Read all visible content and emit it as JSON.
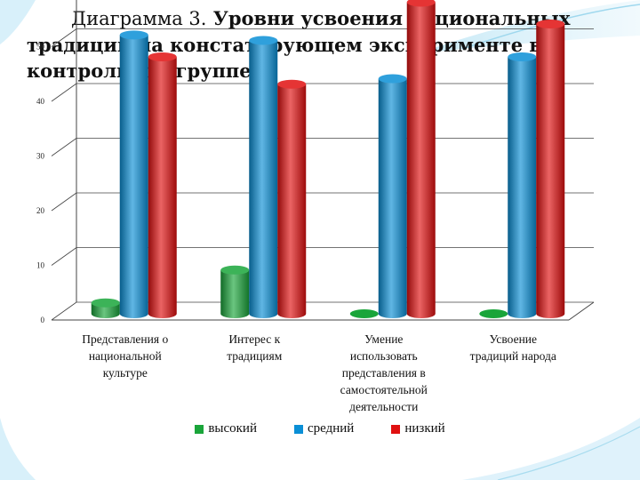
{
  "slide": {
    "title_prefix": "Диаграмма 3.",
    "title_main": "Уровни усвоения национальных традиций на констатирующем эксперименте в контрольной группе."
  },
  "chart_data": {
    "type": "bar",
    "title": "",
    "xlabel": "",
    "ylabel": "",
    "ylim": [
      0,
      60
    ],
    "yticks": [
      0,
      10,
      20,
      30,
      40,
      50,
      60
    ],
    "grid": true,
    "legend_position": "bottom",
    "categories": [
      [
        "Представления о",
        "национальной",
        "культуре"
      ],
      [
        "Интерес к",
        "традициям"
      ],
      [
        "Умение",
        "использовать",
        "представления в",
        "самостоятельной",
        "деятельности"
      ],
      [
        "Усвоение",
        "традиций народа"
      ]
    ],
    "series": [
      {
        "name": "высокий",
        "color": "#1aa53a",
        "values": [
          2,
          8,
          0,
          0
        ]
      },
      {
        "name": "средний",
        "color": "#0a8fd6",
        "values": [
          51,
          50,
          43,
          47
        ]
      },
      {
        "name": "низкий",
        "color": "#e01010",
        "values": [
          47,
          42,
          57,
          53
        ]
      }
    ]
  }
}
